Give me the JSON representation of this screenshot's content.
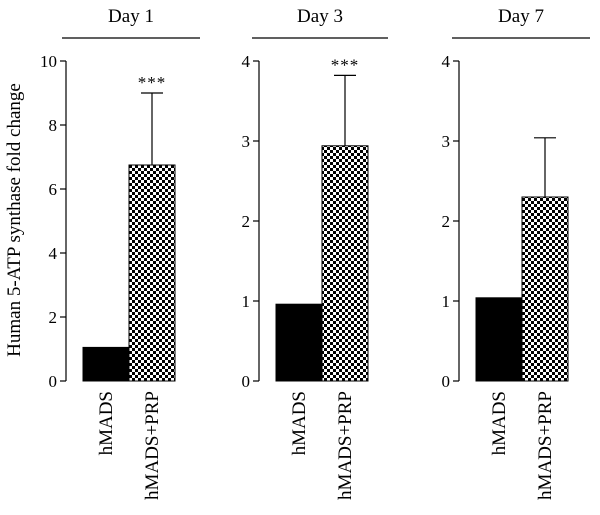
{
  "chart_data": [
    {
      "type": "bar",
      "title": "Day 1",
      "categories": [
        "hMADS",
        "hMADS+PRP"
      ],
      "values": [
        1.05,
        6.75
      ],
      "error_upper": [
        0,
        9.0
      ],
      "significance": [
        "",
        "***"
      ],
      "ylim": [
        0,
        10
      ],
      "yticks": [
        0,
        2,
        4,
        6,
        8,
        10
      ],
      "ylabel": "Human 5-ATP synthase fold change"
    },
    {
      "type": "bar",
      "title": "Day 3",
      "categories": [
        "hMADS",
        "hMADS+PRP"
      ],
      "values": [
        0.96,
        2.94
      ],
      "error_upper": [
        0,
        3.82
      ],
      "significance": [
        "",
        "***"
      ],
      "ylim": [
        0,
        4
      ],
      "yticks": [
        0,
        1,
        2,
        3,
        4
      ]
    },
    {
      "type": "bar",
      "title": "Day 7",
      "categories": [
        "hMADS",
        "hMADS+PRP"
      ],
      "values": [
        1.04,
        2.3
      ],
      "error_upper": [
        0,
        3.04
      ],
      "significance": [
        "",
        ""
      ],
      "ylim": [
        0,
        4
      ],
      "yticks": [
        0,
        1,
        2,
        3,
        4
      ]
    }
  ],
  "colors": {
    "control_bar": "#000000",
    "treatment_pattern": "checkerboard black/white"
  }
}
